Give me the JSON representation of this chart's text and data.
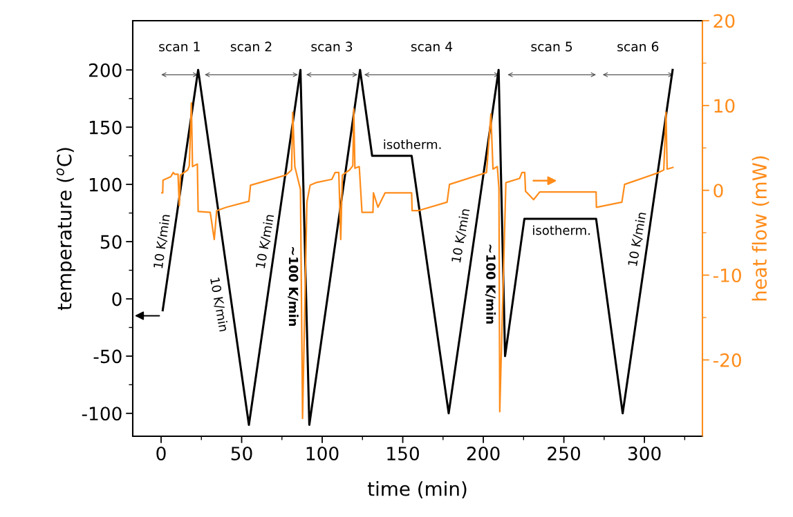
{
  "chart_data": {
    "type": "line",
    "xlabel": "time (min)",
    "ylabel": "temperature ($^{o}$C)",
    "y2label": "heat flow (mW)",
    "xlim": [
      -17.6,
      336
    ],
    "ylim": [
      -120,
      243
    ],
    "y2lim": [
      -29,
      20
    ],
    "xticks": [
      0,
      {
        "value": 25,
        "label": null
      },
      50,
      {
        "value": 75,
        "label": null
      },
      100,
      {
        "value": 125,
        "label": null
      },
      150,
      {
        "value": 175,
        "label": null
      },
      200,
      {
        "value": 225,
        "label": null
      },
      250,
      {
        "value": 275,
        "label": null
      },
      300,
      {
        "value": 325,
        "label": null
      }
    ],
    "yticks": [
      -100,
      {
        "value": -75,
        "label": null
      },
      -50,
      {
        "value": -25,
        "label": null
      },
      0,
      {
        "value": 25,
        "label": null
      },
      50,
      {
        "value": 75,
        "label": null
      },
      100,
      {
        "value": 125,
        "label": null
      },
      150,
      {
        "value": 175,
        "label": null
      },
      200
    ],
    "y2ticks": [
      -20,
      {
        "value": -15,
        "label": null
      },
      -10,
      {
        "value": -5,
        "label": null
      },
      0,
      {
        "value": 5,
        "label": null
      },
      10,
      {
        "value": 15,
        "label": null
      },
      20
    ],
    "grid": false,
    "legend": false,
    "marker": "none",
    "line_style": "solid",
    "series": [
      {
        "color": "#000000",
        "x": [
          1,
          23,
          54.5,
          86.5,
          92,
          123.5,
          131,
          155.5,
          178.5,
          209.5,
          213.5,
          225.5,
          270,
          286.5,
          317.5
        ],
        "values": [
          -10,
          200,
          -110,
          200,
          -110,
          200,
          125,
          125,
          -100,
          200,
          -50,
          70,
          70,
          -100,
          200
        ]
      },
      {
        "color": "#ff8c1a",
        "axis": "y2",
        "x": [
          0.5,
          1,
          1.2,
          6,
          7.5,
          8.5,
          10.5,
          11.3,
          12,
          16.5,
          17.5,
          18.8,
          19.5,
          22.5,
          23,
          30.5,
          33,
          34.5,
          40.5,
          54.5,
          55.5,
          63,
          77.5,
          81,
          81.7,
          83,
          86.5,
          87.8,
          90.5,
          92.5,
          96,
          106,
          108,
          110.3,
          111.5,
          112.5,
          117,
          119,
          119.6,
          120.3,
          123,
          124.7,
          131.5,
          131.8,
          134.6,
          139,
          155.5,
          155.8,
          159.5,
          177.5,
          179,
          200.5,
          202,
          204.7,
          206,
          208.7,
          209.7,
          210.2,
          214,
          222.5,
          224,
          225.7,
          226.2,
          231.2,
          235,
          270,
          270.2,
          286,
          287.7,
          307.5,
          312,
          313.4,
          314.1,
          317.7
        ],
        "values": [
          -0.3,
          -0.3,
          1.2,
          1.6,
          2.1,
          1.9,
          1.9,
          -1.8,
          1.8,
          2.4,
          2.9,
          10.3,
          2.8,
          3.1,
          -2.5,
          -2.6,
          -5.8,
          -2.4,
          -2,
          -1.3,
          0.6,
          1,
          1.8,
          2.4,
          9.2,
          2.8,
          0.1,
          -26.9,
          -1.4,
          0.6,
          0.9,
          1.3,
          2.1,
          2.1,
          -5.8,
          1.8,
          2.4,
          2.9,
          9.6,
          2.6,
          2.8,
          -2.6,
          -2.6,
          -0.3,
          -2,
          -0.3,
          -0.3,
          -2.4,
          -2.4,
          -1.4,
          0.7,
          2,
          2.1,
          9,
          2.5,
          2.8,
          0.2,
          -26.1,
          0.9,
          1.4,
          2.1,
          2.1,
          -0.1,
          -1.1,
          -0.2,
          -0.2,
          -2,
          -1.4,
          0.7,
          2,
          2.4,
          9.2,
          2.5,
          2.7
        ]
      }
    ],
    "annotations": [
      "scan 1",
      "scan 2",
      "scan 3",
      "scan 4",
      "scan 5",
      "scan 6",
      "10 K/min",
      "10 K/min",
      "10 K/min",
      "~100 K/min",
      "10 K/min",
      "~100 K/min",
      "10 K/min",
      "isotherm.",
      "isotherm."
    ]
  }
}
